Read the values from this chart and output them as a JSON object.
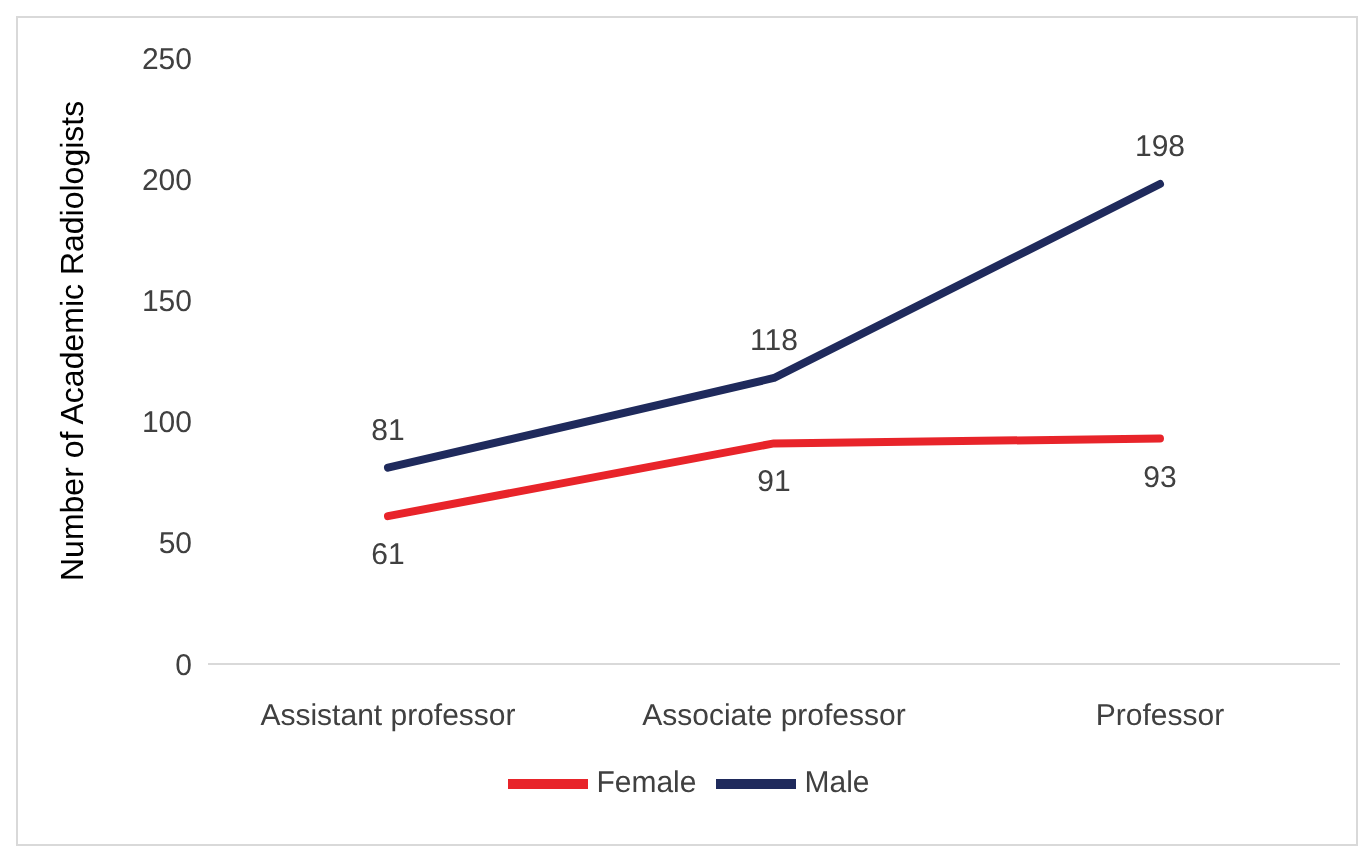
{
  "chart_data": {
    "type": "line",
    "ylabel": "Number of Academic Radiologists",
    "categories": [
      "Assistant professor",
      "Associate professor",
      "Professor"
    ],
    "series": [
      {
        "name": "Female",
        "color": "#e8242a",
        "values": [
          61,
          91,
          93
        ]
      },
      {
        "name": "Male",
        "color": "#1f2a5c",
        "values": [
          81,
          118,
          198
        ]
      }
    ],
    "ylim": [
      0,
      250
    ],
    "yticks": [
      0,
      50,
      100,
      150,
      200,
      250
    ],
    "grid": false,
    "legend": "bottom",
    "data_labels": true,
    "marker": "none",
    "line_style": "solid"
  }
}
